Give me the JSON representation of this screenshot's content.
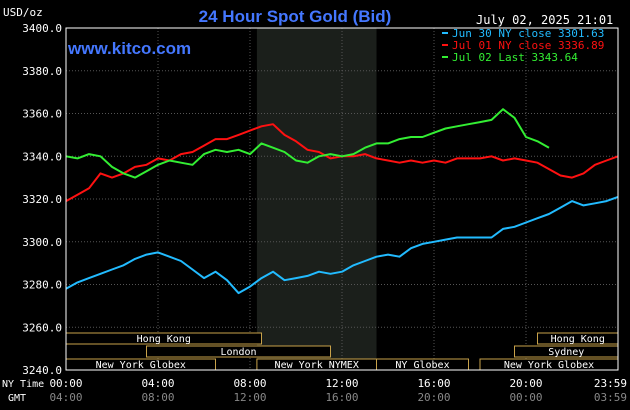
{
  "chart_data": {
    "type": "line",
    "title": "24 Hour Spot Gold (Bid)",
    "unit": "USD/oz",
    "watermark": "www.kitco.com",
    "timestamp": "July 02, 2025 21:01",
    "y_ticks": [
      "3400.0",
      "3380.0",
      "3360.0",
      "3340.0",
      "3320.0",
      "3300.0",
      "3280.0",
      "3260.0",
      "3240.0"
    ],
    "y_tick_values": [
      3400,
      3380,
      3360,
      3340,
      3320,
      3300,
      3280,
      3260,
      3240
    ],
    "ylim": [
      3240,
      3400
    ],
    "xlim": [
      0,
      24
    ],
    "x_axis_label_ny": "NY Time",
    "x_axis_label_gmt": "GMT",
    "x_ticks_ny": [
      "00:00",
      "04:00",
      "08:00",
      "12:00",
      "16:00",
      "20:00",
      "23:59"
    ],
    "x_ticks_gmt": [
      "04:00",
      "08:00",
      "12:00",
      "16:00",
      "20:00",
      "00:00",
      "03:59"
    ],
    "x_tick_hours": [
      0,
      4,
      8,
      12,
      16,
      20,
      24
    ],
    "shaded_hours": [
      8.3,
      13.5
    ],
    "grid": true,
    "legend_position": "top-right",
    "series": [
      {
        "name": "Jun 30 NY close 3301.63",
        "color": "#22bbff",
        "x": [
          0,
          0.5,
          1,
          1.5,
          2,
          2.5,
          3,
          3.5,
          4,
          4.5,
          5,
          5.5,
          6,
          6.5,
          7,
          7.5,
          8,
          8.5,
          9,
          9.5,
          10,
          10.5,
          11,
          11.5,
          12,
          12.5,
          13,
          13.5,
          14,
          14.5,
          15,
          15.5,
          16,
          16.5,
          17,
          17.5,
          18,
          18.5,
          19,
          19.5,
          20,
          20.5,
          21,
          21.5,
          22,
          22.5,
          23,
          23.5,
          24
        ],
        "values": [
          3278,
          3281,
          3283,
          3285,
          3287,
          3289,
          3292,
          3294,
          3295,
          3293,
          3291,
          3287,
          3283,
          3286,
          3282,
          3276,
          3279,
          3283,
          3286,
          3282,
          3283,
          3284,
          3286,
          3285,
          3286,
          3289,
          3291,
          3293,
          3294,
          3293,
          3297,
          3299,
          3300,
          3301,
          3302,
          3302,
          3302,
          3302,
          3306,
          3307,
          3309,
          3311,
          3313,
          3316,
          3319,
          3317,
          3318,
          3319,
          3321
        ]
      },
      {
        "name": "Jul 01 NY close 3336.89",
        "color": "#ff1111",
        "x": [
          0,
          0.5,
          1,
          1.5,
          2,
          2.5,
          3,
          3.5,
          4,
          4.5,
          5,
          5.5,
          6,
          6.5,
          7,
          7.5,
          8,
          8.5,
          9,
          9.5,
          10,
          10.5,
          11,
          11.5,
          12,
          12.5,
          13,
          13.5,
          14,
          14.5,
          15,
          15.5,
          16,
          16.5,
          17,
          17.5,
          18,
          18.5,
          19,
          19.5,
          20,
          20.5,
          21,
          21.5,
          22,
          22.5,
          23,
          23.5,
          24
        ],
        "values": [
          3319,
          3322,
          3325,
          3332,
          3330,
          3332,
          3335,
          3336,
          3339,
          3338,
          3341,
          3342,
          3345,
          3348,
          3348,
          3350,
          3352,
          3354,
          3355,
          3350,
          3347,
          3343,
          3342,
          3339,
          3340,
          3340,
          3341,
          3339,
          3338,
          3337,
          3338,
          3337,
          3338,
          3337,
          3339,
          3339,
          3339,
          3340,
          3338,
          3339,
          3338,
          3337,
          3334,
          3331,
          3330,
          3332,
          3336,
          3338,
          3340
        ]
      },
      {
        "name": "Jul 02 Last 3343.64",
        "color": "#33ee33",
        "x": [
          0,
          0.5,
          1,
          1.5,
          2,
          2.5,
          3,
          3.5,
          4,
          4.5,
          5,
          5.5,
          6,
          6.5,
          7,
          7.5,
          8,
          8.5,
          9,
          9.5,
          10,
          10.5,
          11,
          11.5,
          12,
          12.5,
          13,
          13.5,
          14,
          14.5,
          15,
          15.5,
          16,
          16.5,
          17,
          17.5,
          18,
          18.5,
          19,
          19.5,
          20,
          20.5,
          21
        ],
        "values": [
          3340,
          3339,
          3341,
          3340,
          3335,
          3332,
          3330,
          3333,
          3336,
          3338,
          3337,
          3336,
          3341,
          3343,
          3342,
          3343,
          3341,
          3346,
          3344,
          3342,
          3338,
          3337,
          3340,
          3341,
          3340,
          3341,
          3344,
          3346,
          3346,
          3348,
          3349,
          3349,
          3351,
          3353,
          3354,
          3355,
          3356,
          3357,
          3362,
          3358,
          3349,
          3347,
          3344
        ]
      }
    ],
    "sessions": [
      {
        "label": "Hong Kong",
        "start": 0,
        "end": 8.5,
        "row": 0
      },
      {
        "label": "London",
        "start": 3.5,
        "end": 11.5,
        "row": 1
      },
      {
        "label": "New York Globex",
        "start": 0,
        "end": 6.5,
        "row": 2
      },
      {
        "label": "New York NYMEX",
        "start": 8.3,
        "end": 13.5,
        "row": 2
      },
      {
        "label": "NY Globex",
        "start": 13.5,
        "end": 17.5,
        "row": 2
      },
      {
        "label": "Hong Kong",
        "start": 20.5,
        "end": 24,
        "row": 0
      },
      {
        "label": "Sydney",
        "start": 19.5,
        "end": 24,
        "row": 1
      },
      {
        "label": "New York Globex",
        "start": 18,
        "end": 24,
        "row": 2
      }
    ]
  }
}
